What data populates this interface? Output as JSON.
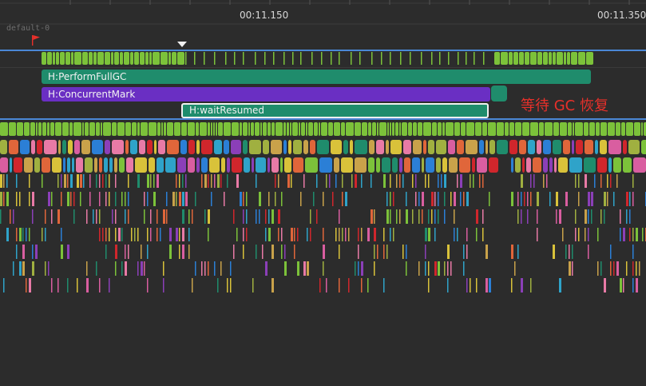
{
  "ruler": {
    "times": [
      "00:11.150",
      "00:11.350"
    ]
  },
  "track": {
    "name": "default-0"
  },
  "slices": {
    "perform_full_gc": "H:PerformFullGC",
    "concurrent_mark": "H:ConcurrentMark",
    "wait_resumed": "H:waitResumed"
  },
  "annotation": "等待 GC 恢复",
  "colors": {
    "background": "#2c2c2c",
    "selection_line": "#4a87d6",
    "full_gc": "#1f8c6c",
    "concurrent_mark": "#6a2fc3",
    "annotation": "#e8302a",
    "activity": "#7cc23a",
    "palette": [
      "#d0262c",
      "#e0663a",
      "#2b7fd6",
      "#2fa3c9",
      "#c9a24a",
      "#8b3fb8",
      "#e87aa6",
      "#1f8c6c",
      "#d9c23a",
      "#7cc23a",
      "#d95ea0",
      "#a0b040"
    ]
  },
  "icons": {
    "flag": "flag-icon",
    "cursor": "triangle-down-icon"
  }
}
